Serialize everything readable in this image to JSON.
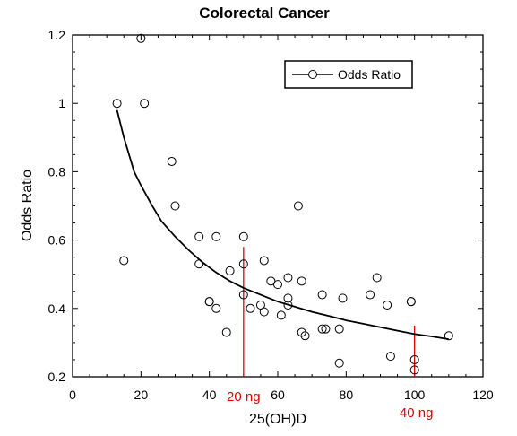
{
  "chart_data": {
    "type": "scatter",
    "title": "Colorectal Cancer",
    "xlabel": "25(OH)D",
    "ylabel": "Odds Ratio",
    "xlim": [
      0,
      120
    ],
    "ylim": [
      0.2,
      1.2
    ],
    "x_ticks": [
      0,
      20,
      40,
      60,
      80,
      100,
      120
    ],
    "y_ticks": [
      0.2,
      0.4,
      0.6,
      0.8,
      1,
      1.2
    ],
    "x_tick_labels": [
      "0",
      "20",
      "40",
      "60",
      "80",
      "100",
      "120"
    ],
    "y_tick_labels": [
      "0.2",
      "0.4",
      "0.6",
      "0.8",
      "1",
      "1.2"
    ],
    "grid": false,
    "legend": {
      "placement": "top-right",
      "entries": [
        "Odds Ratio"
      ]
    },
    "series": [
      {
        "name": "Odds Ratio",
        "marker": "open-circle",
        "points": [
          [
            13,
            1.0
          ],
          [
            15,
            0.54
          ],
          [
            20,
            1.19
          ],
          [
            21,
            1.0
          ],
          [
            29,
            0.83
          ],
          [
            30,
            0.7
          ],
          [
            37,
            0.61
          ],
          [
            37,
            0.53
          ],
          [
            40,
            0.42
          ],
          [
            40,
            0.42
          ],
          [
            42,
            0.61
          ],
          [
            42,
            0.4
          ],
          [
            45,
            0.33
          ],
          [
            46,
            0.51
          ],
          [
            50,
            0.61
          ],
          [
            50,
            0.53
          ],
          [
            50,
            0.44
          ],
          [
            52,
            0.4
          ],
          [
            55,
            0.41
          ],
          [
            56,
            0.39
          ],
          [
            56,
            0.54
          ],
          [
            58,
            0.48
          ],
          [
            60,
            0.47
          ],
          [
            61,
            0.38
          ],
          [
            63,
            0.49
          ],
          [
            63,
            0.43
          ],
          [
            63,
            0.41
          ],
          [
            66,
            0.7
          ],
          [
            67,
            0.48
          ],
          [
            67,
            0.33
          ],
          [
            68,
            0.32
          ],
          [
            73,
            0.44
          ],
          [
            73,
            0.34
          ],
          [
            74,
            0.34
          ],
          [
            78,
            0.34
          ],
          [
            78,
            0.24
          ],
          [
            79,
            0.43
          ],
          [
            87,
            0.44
          ],
          [
            89,
            0.49
          ],
          [
            92,
            0.41
          ],
          [
            93,
            0.26
          ],
          [
            99,
            0.42
          ],
          [
            99,
            0.42
          ],
          [
            100,
            0.25
          ],
          [
            100,
            0.22
          ],
          [
            110,
            0.32
          ]
        ]
      }
    ],
    "fit_curve": {
      "x": [
        13,
        15,
        18,
        20,
        23,
        26,
        30,
        34,
        38,
        42,
        46,
        50,
        55,
        60,
        65,
        70,
        75,
        80,
        85,
        90,
        95,
        100,
        105,
        110
      ],
      "y": [
        0.98,
        0.9,
        0.8,
        0.76,
        0.705,
        0.655,
        0.61,
        0.57,
        0.535,
        0.505,
        0.48,
        0.46,
        0.44,
        0.42,
        0.405,
        0.39,
        0.378,
        0.365,
        0.355,
        0.345,
        0.335,
        0.325,
        0.318,
        0.31
      ]
    },
    "reference_lines": [
      {
        "x": 50,
        "y_top": 0.58,
        "label": "20 ng",
        "color": "#e00000"
      },
      {
        "x": 100,
        "y_top": 0.35,
        "label": "40 ng",
        "color": "#e00000"
      }
    ]
  }
}
